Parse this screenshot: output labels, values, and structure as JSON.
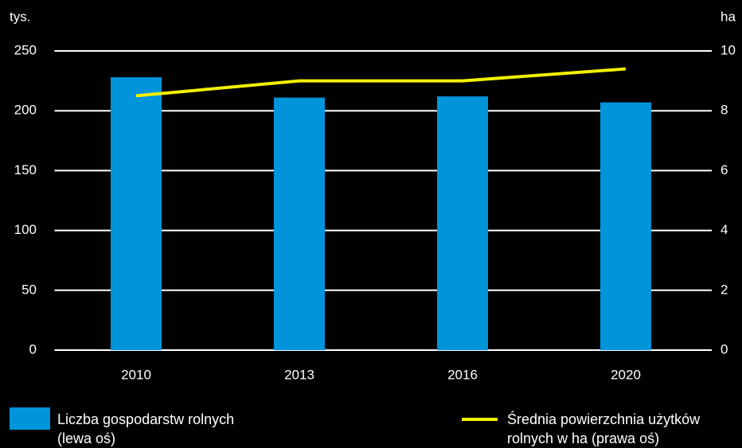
{
  "chart_data": {
    "type": "bar_line",
    "y_label": "tys.",
    "y2_label": "ha",
    "categories": [
      "2010",
      "2013",
      "2016",
      "2020"
    ],
    "series": [
      {
        "name": "Liczba gospodarstw rolnych (lewa oś)",
        "type": "bar",
        "color": "#0095db",
        "values": [
          228,
          211,
          212,
          207
        ]
      },
      {
        "name": "Średnia powierzchnia użytków rolnych w ha (prawa oś)",
        "type": "line",
        "axis": "y2",
        "color": "#f2f000",
        "values": [
          8.5,
          9.0,
          9.0,
          9.4
        ]
      }
    ],
    "ylim": [
      0,
      250
    ],
    "yticks": [
      0,
      50,
      100,
      150,
      200,
      250
    ],
    "y2lim": [
      0,
      10
    ],
    "y2ticks": [
      0,
      2,
      4,
      6,
      8,
      10
    ],
    "grid": true,
    "legend": "bottom"
  }
}
